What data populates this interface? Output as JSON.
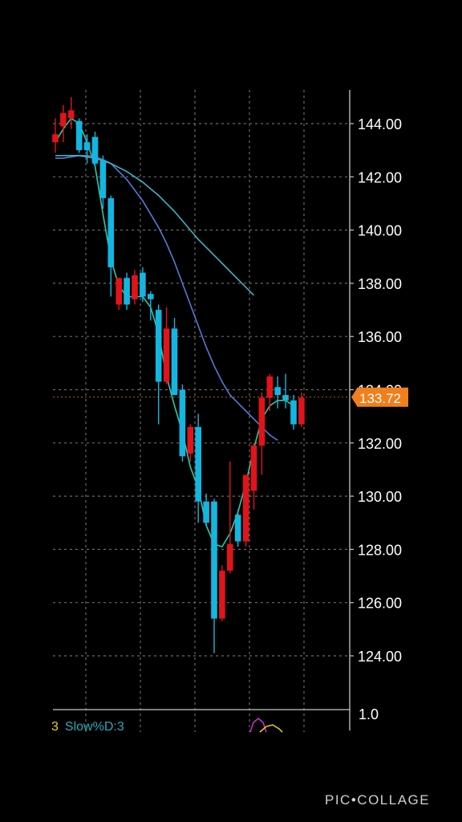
{
  "chart_data": {
    "type": "candlestick",
    "ylim": [
      122.0,
      145.5
    ],
    "y_ticks": [
      "144.00",
      "142.00",
      "140.00",
      "138.00",
      "136.00",
      "134.00",
      "132.00",
      "130.00",
      "128.00",
      "126.00",
      "124.00"
    ],
    "y_tick_values": [
      144,
      142,
      140,
      138,
      136,
      134,
      132,
      130,
      128,
      126,
      124
    ],
    "last_price": 133.72,
    "last_price_label": "133.72",
    "grid": true,
    "candles": [
      {
        "o": 143.3,
        "h": 144.2,
        "l": 142.9,
        "c": 143.6
      },
      {
        "o": 143.9,
        "h": 144.7,
        "l": 143.3,
        "c": 144.4
      },
      {
        "o": 144.2,
        "h": 145.0,
        "l": 143.8,
        "c": 144.5
      },
      {
        "o": 144.1,
        "h": 144.2,
        "l": 142.9,
        "c": 143.0
      },
      {
        "o": 143.3,
        "h": 143.6,
        "l": 142.5,
        "c": 143.0
      },
      {
        "o": 143.5,
        "h": 143.7,
        "l": 142.4,
        "c": 142.5
      },
      {
        "o": 142.6,
        "h": 142.8,
        "l": 140.8,
        "c": 141.2
      },
      {
        "o": 141.2,
        "h": 141.3,
        "l": 137.5,
        "c": 138.6
      },
      {
        "o": 137.2,
        "h": 138.2,
        "l": 137.0,
        "c": 138.2
      },
      {
        "o": 138.2,
        "h": 138.4,
        "l": 137.0,
        "c": 137.2
      },
      {
        "o": 137.4,
        "h": 138.5,
        "l": 137.2,
        "c": 138.3
      },
      {
        "o": 138.4,
        "h": 138.6,
        "l": 137.3,
        "c": 137.5
      },
      {
        "o": 137.6,
        "h": 137.7,
        "l": 136.6,
        "c": 137.4
      },
      {
        "o": 137.0,
        "h": 137.2,
        "l": 132.7,
        "c": 134.3
      },
      {
        "o": 134.3,
        "h": 137.1,
        "l": 134.2,
        "c": 136.3
      },
      {
        "o": 136.3,
        "h": 136.7,
        "l": 133.8,
        "c": 133.8
      },
      {
        "o": 134.0,
        "h": 134.2,
        "l": 131.3,
        "c": 131.5
      },
      {
        "o": 131.6,
        "h": 132.7,
        "l": 131.3,
        "c": 132.6
      },
      {
        "o": 132.6,
        "h": 133.1,
        "l": 129.0,
        "c": 129.8
      },
      {
        "o": 129.8,
        "h": 130.1,
        "l": 128.9,
        "c": 129.0
      },
      {
        "o": 129.8,
        "h": 129.9,
        "l": 124.1,
        "c": 125.4
      },
      {
        "o": 125.4,
        "h": 127.4,
        "l": 125.3,
        "c": 127.2
      },
      {
        "o": 127.2,
        "h": 131.3,
        "l": 127.1,
        "c": 128.2
      },
      {
        "o": 129.3,
        "h": 129.5,
        "l": 128.1,
        "c": 128.3
      },
      {
        "o": 128.3,
        "h": 130.6,
        "l": 128.1,
        "c": 130.8
      },
      {
        "o": 130.2,
        "h": 132.0,
        "l": 129.5,
        "c": 131.9
      },
      {
        "o": 131.9,
        "h": 133.9,
        "l": 130.8,
        "c": 133.7
      },
      {
        "o": 133.7,
        "h": 134.6,
        "l": 133.2,
        "c": 134.5
      },
      {
        "o": 134.1,
        "h": 134.5,
        "l": 133.3,
        "c": 133.8
      },
      {
        "o": 133.8,
        "h": 134.6,
        "l": 133.3,
        "c": 133.6
      },
      {
        "o": 133.6,
        "h": 133.8,
        "l": 132.5,
        "c": 132.7
      },
      {
        "o": 132.7,
        "h": 133.9,
        "l": 132.6,
        "c": 133.7
      }
    ],
    "series": [
      {
        "color": "#2fc9a8",
        "values": [
          143.3,
          143.8,
          144.2,
          144.0,
          143.3,
          142.4,
          140.6,
          138.9,
          137.9,
          137.5,
          137.5,
          137.5,
          137.1,
          136.1,
          134.5,
          133.4,
          132.4,
          131.1,
          130.3,
          128.9,
          128.2,
          128.1,
          128.6,
          129.4,
          130.5,
          131.8,
          132.9,
          133.4,
          133.6,
          133.6,
          133.4
        ]
      },
      {
        "color": "#5a78d6",
        "values": [
          142.7,
          142.7,
          142.75,
          142.8,
          142.8,
          142.75,
          142.65,
          142.5,
          142.2,
          141.9,
          141.5,
          141.1,
          140.6,
          140.1,
          139.5,
          138.8,
          138.0,
          137.2,
          136.4,
          135.6,
          134.9,
          134.3,
          133.8,
          133.5,
          133.2,
          132.9,
          132.6,
          132.3,
          132.1
        ]
      },
      {
        "color": "#3fb2c4",
        "values": [
          142.8,
          142.8,
          142.8,
          142.8,
          142.75,
          142.7,
          142.6,
          142.5,
          142.35,
          142.2,
          142.0,
          141.8,
          141.55,
          141.3,
          141.0,
          140.7,
          140.35,
          140.0,
          139.65,
          139.35,
          139.05,
          138.75,
          138.45,
          138.15,
          137.85,
          137.55
        ]
      }
    ],
    "indicator_label_prefix": "3",
    "indicator_label": "Slow%D:3",
    "indicator_scale": "1.0"
  },
  "watermark": "PIC•COLLAGE",
  "colors": {
    "up": "#e0141a",
    "down": "#13b6e1",
    "grid": "#6b6b6b",
    "axis": "#c8c8c8",
    "price_tag": "#f07f1c"
  }
}
